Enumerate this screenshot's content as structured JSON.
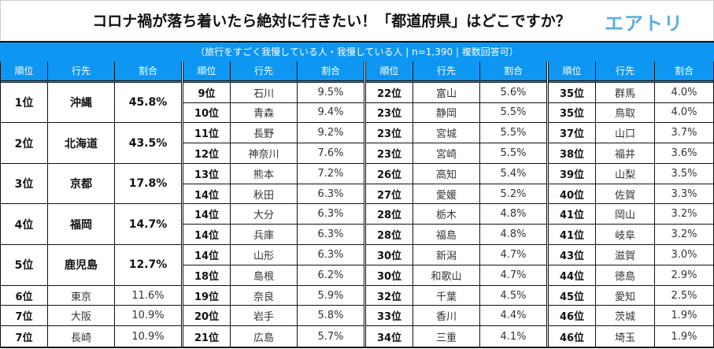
{
  "title": "コロナ禍が落ち着いたら絶対に行きたい！「都道府県」はどこですか？",
  "logo": "エアトリ",
  "subtitle": "（旅行をすごく我慢している人・我慢している人 | n=1,390 | 複数回答可）",
  "headers": [
    "順位",
    "行先",
    "割合"
  ],
  "colors": {
    "header_bg": "#0d96f2",
    "logo": "#5aaee0"
  },
  "blocks": [
    [
      [
        "1位",
        "沖縄",
        "45.8%"
      ],
      [
        "2位",
        "北海道",
        "43.5%"
      ],
      [
        "3位",
        "京都",
        "17.8%"
      ],
      [
        "4位",
        "福岡",
        "14.7%"
      ],
      [
        "5位",
        "鹿児島",
        "12.7%"
      ],
      [
        "6位",
        "東京",
        "11.6%"
      ],
      [
        "7位",
        "大阪",
        "10.9%"
      ],
      [
        "7位",
        "長崎",
        "10.9%"
      ]
    ],
    [
      [
        "9位",
        "石川",
        "9.5%"
      ],
      [
        "10位",
        "青森",
        "9.4%"
      ],
      [
        "11位",
        "長野",
        "9.2%"
      ],
      [
        "12位",
        "神奈川",
        "7.6%"
      ],
      [
        "13位",
        "熊本",
        "7.2%"
      ],
      [
        "14位",
        "秋田",
        "6.3%"
      ],
      [
        "14位",
        "大分",
        "6.3%"
      ],
      [
        "14位",
        "兵庫",
        "6.3%"
      ],
      [
        "14位",
        "山形",
        "6.3%"
      ],
      [
        "18位",
        "島根",
        "6.2%"
      ],
      [
        "19位",
        "奈良",
        "5.9%"
      ],
      [
        "20位",
        "岩手",
        "5.8%"
      ],
      [
        "21位",
        "広島",
        "5.7%"
      ]
    ],
    [
      [
        "22位",
        "富山",
        "5.6%"
      ],
      [
        "23位",
        "静岡",
        "5.5%"
      ],
      [
        "23位",
        "宮城",
        "5.5%"
      ],
      [
        "23位",
        "宮崎",
        "5.5%"
      ],
      [
        "26位",
        "高知",
        "5.4%"
      ],
      [
        "27位",
        "愛媛",
        "5.2%"
      ],
      [
        "28位",
        "栃木",
        "4.8%"
      ],
      [
        "28位",
        "福島",
        "4.8%"
      ],
      [
        "30位",
        "新潟",
        "4.7%"
      ],
      [
        "30位",
        "和歌山",
        "4.7%"
      ],
      [
        "32位",
        "千葉",
        "4.5%"
      ],
      [
        "33位",
        "香川",
        "4.4%"
      ],
      [
        "34位",
        "三重",
        "4.1%"
      ]
    ],
    [
      [
        "35位",
        "群馬",
        "4.0%"
      ],
      [
        "35位",
        "鳥取",
        "4.0%"
      ],
      [
        "37位",
        "山口",
        "3.7%"
      ],
      [
        "38位",
        "福井",
        "3.6%"
      ],
      [
        "39位",
        "山梨",
        "3.5%"
      ],
      [
        "40位",
        "佐賀",
        "3.3%"
      ],
      [
        "41位",
        "岡山",
        "3.2%"
      ],
      [
        "41位",
        "岐阜",
        "3.2%"
      ],
      [
        "43位",
        "滋賀",
        "3.0%"
      ],
      [
        "44位",
        "徳島",
        "2.9%"
      ],
      [
        "45位",
        "愛知",
        "2.5%"
      ],
      [
        "46位",
        "茨城",
        "1.9%"
      ],
      [
        "46位",
        "埼玉",
        "1.9%"
      ]
    ]
  ]
}
